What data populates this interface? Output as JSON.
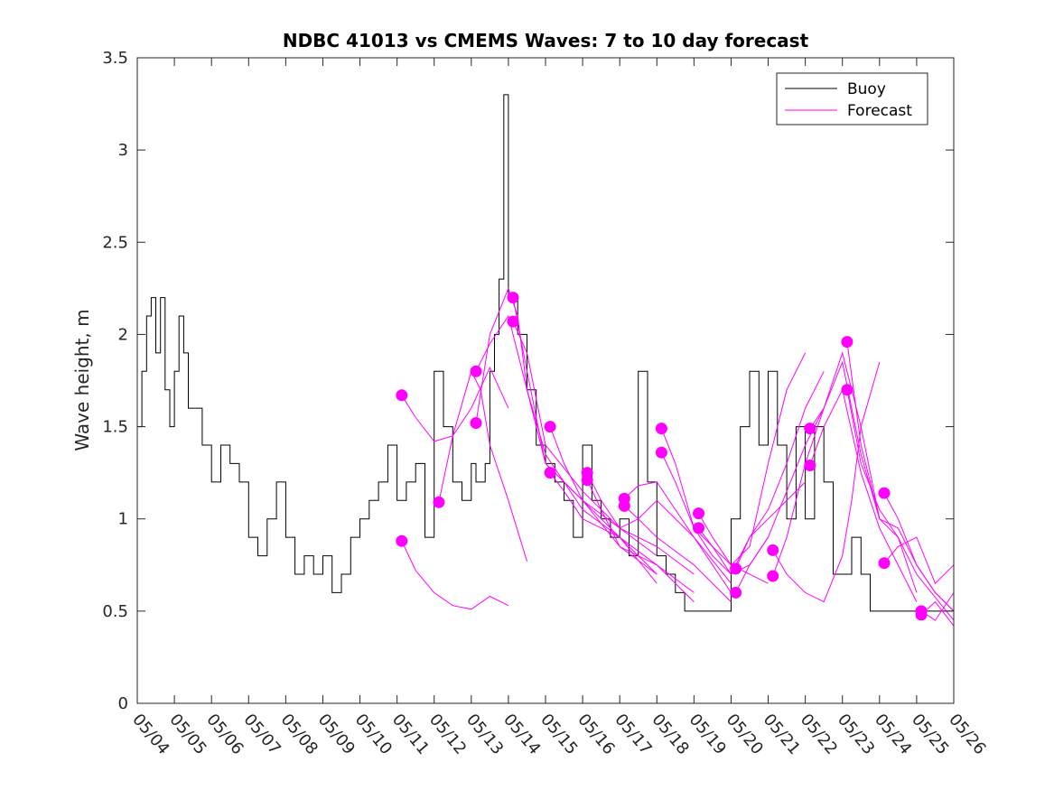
{
  "chart_data": {
    "type": "line",
    "title": "NDBC 41013 vs CMEMS Waves: 7 to 10 day forecast",
    "xlabel": "",
    "ylabel": "Wave height, m",
    "xlim": [
      "05/04",
      "05/26"
    ],
    "ylim": [
      0,
      3.5
    ],
    "yticks": [
      "0",
      "0.5",
      "1",
      "1.5",
      "2",
      "2.5",
      "3",
      "3.5"
    ],
    "xticks": [
      "05/04",
      "05/05",
      "05/06",
      "05/07",
      "05/08",
      "05/09",
      "05/10",
      "05/11",
      "05/12",
      "05/13",
      "05/14",
      "05/15",
      "05/16",
      "05/17",
      "05/18",
      "05/19",
      "05/20",
      "05/21",
      "05/22",
      "05/23",
      "05/24",
      "05/25",
      "05/26"
    ],
    "legend": {
      "position": "top-right",
      "entries": [
        "Buoy",
        "Forecast"
      ]
    },
    "colors": {
      "buoy": "#000000",
      "forecast": "#ff00ff"
    },
    "buoy": {
      "name": "Buoy",
      "x": [
        "05/04 00:00",
        "05/04 03:00",
        "05/04 06:00",
        "05/04 09:00",
        "05/04 12:00",
        "05/04 15:00",
        "05/04 18:00",
        "05/04 21:00",
        "05/05 00:00",
        "05/05 03:00",
        "05/05 06:00",
        "05/05 09:00",
        "05/05 12:00",
        "05/05 18:00",
        "05/06 00:00",
        "05/06 06:00",
        "05/06 12:00",
        "05/06 18:00",
        "05/07 00:00",
        "05/07 06:00",
        "05/07 12:00",
        "05/07 18:00",
        "05/08 00:00",
        "05/08 06:00",
        "05/08 12:00",
        "05/08 18:00",
        "05/09 00:00",
        "05/09 06:00",
        "05/09 12:00",
        "05/09 18:00",
        "05/10 00:00",
        "05/10 06:00",
        "05/10 12:00",
        "05/10 18:00",
        "05/11 00:00",
        "05/11 06:00",
        "05/11 12:00",
        "05/11 18:00",
        "05/12 00:00",
        "05/12 06:00",
        "05/12 12:00",
        "05/12 18:00",
        "05/13 00:00",
        "05/13 03:00",
        "05/13 06:00",
        "05/13 09:00",
        "05/13 12:00",
        "05/13 15:00",
        "05/13 18:00",
        "05/13 21:00",
        "05/14 00:00",
        "05/14 06:00",
        "05/14 12:00",
        "05/14 18:00",
        "05/15 00:00",
        "05/15 06:00",
        "05/15 12:00",
        "05/15 18:00",
        "05/16 00:00",
        "05/16 06:00",
        "05/16 12:00",
        "05/16 18:00",
        "05/17 00:00",
        "05/17 06:00",
        "05/17 12:00",
        "05/17 18:00",
        "05/18 00:00",
        "05/18 06:00",
        "05/18 12:00",
        "05/18 18:00",
        "05/19 00:00",
        "05/19 06:00",
        "05/19 12:00",
        "05/19 18:00",
        "05/20 00:00",
        "05/20 06:00",
        "05/20 12:00",
        "05/20 18:00",
        "05/21 00:00",
        "05/21 06:00",
        "05/21 12:00",
        "05/21 18:00",
        "05/22 00:00",
        "05/22 06:00",
        "05/22 12:00",
        "05/22 18:00",
        "05/23 00:00",
        "05/23 06:00",
        "05/23 12:00",
        "05/23 18:00",
        "05/24 00:00",
        "05/24 06:00",
        "05/24 12:00",
        "05/24 18:00",
        "05/25 00:00",
        "05/25 06:00",
        "05/25 12:00",
        "05/25 18:00",
        "05/26 00:00"
      ],
      "values": [
        1.5,
        1.8,
        2.1,
        2.2,
        1.9,
        2.2,
        1.7,
        1.5,
        1.8,
        2.1,
        1.9,
        1.6,
        1.6,
        1.4,
        1.2,
        1.4,
        1.3,
        1.2,
        0.9,
        0.8,
        1.0,
        1.2,
        0.9,
        0.7,
        0.8,
        0.7,
        0.8,
        0.6,
        0.7,
        0.9,
        1.0,
        1.1,
        1.2,
        1.4,
        1.1,
        1.2,
        1.3,
        0.9,
        1.8,
        1.5,
        1.2,
        1.1,
        1.3,
        1.2,
        1.2,
        1.3,
        1.8,
        2.0,
        2.3,
        3.3,
        2.2,
        2.0,
        1.7,
        1.4,
        1.3,
        1.2,
        1.1,
        0.9,
        1.4,
        1.1,
        1.0,
        0.9,
        1.0,
        0.8,
        1.8,
        1.2,
        0.8,
        0.7,
        0.6,
        0.5,
        0.5,
        0.5,
        0.5,
        0.5,
        1.0,
        1.5,
        1.8,
        1.4,
        1.8,
        1.4,
        1.0,
        1.5,
        1.0,
        1.5,
        1.2,
        0.7,
        0.7,
        0.9,
        0.7,
        0.5,
        0.5,
        0.5,
        0.5,
        0.5,
        0.5,
        0.5,
        0.5,
        0.5,
        0.5
      ]
    },
    "forecasts": [
      {
        "x": [
          "05/11 03:00",
          "05/11 12:00",
          "05/12 00:00",
          "05/12 12:00",
          "05/13 00:00",
          "05/13 12:00",
          "05/14 00:00"
        ],
        "values": [
          0.88,
          0.72,
          0.6,
          0.53,
          0.51,
          0.58,
          0.53
        ]
      },
      {
        "x": [
          "05/11 03:00",
          "05/11 12:00",
          "05/12 00:00",
          "05/12 12:00",
          "05/13 00:00",
          "05/13 12:00",
          "05/14 00:00"
        ],
        "values": [
          1.67,
          1.55,
          1.42,
          1.45,
          1.6,
          1.82,
          1.6
        ]
      },
      {
        "x": [
          "05/12 03:00",
          "05/12 12:00",
          "05/13 00:00",
          "05/13 06:00",
          "05/13 12:00",
          "05/14 00:00",
          "05/14 12:00"
        ],
        "values": [
          1.09,
          1.45,
          1.8,
          1.7,
          1.4,
          1.1,
          0.77
        ]
      },
      {
        "x": [
          "05/13 03:00",
          "05/13 12:00",
          "05/14 00:00",
          "05/14 06:00",
          "05/14 12:00",
          "05/15 00:00",
          "05/15 12:00",
          "05/16 00:00",
          "05/17 00:00",
          "05/18 00:00"
        ],
        "values": [
          1.52,
          2.0,
          2.25,
          2.1,
          1.7,
          1.35,
          1.2,
          1.05,
          0.9,
          0.7
        ]
      },
      {
        "x": [
          "05/13 03:00",
          "05/13 12:00",
          "05/14 00:00",
          "05/14 06:00",
          "05/15 00:00",
          "05/16 00:00",
          "05/17 00:00",
          "05/18 00:00",
          "05/19 00:00"
        ],
        "values": [
          1.8,
          1.95,
          2.1,
          1.9,
          1.3,
          1.1,
          0.9,
          0.75,
          0.55
        ]
      },
      {
        "x": [
          "05/14 03:00",
          "05/14 12:00",
          "05/15 00:00",
          "05/16 00:00",
          "05/17 00:00",
          "05/18 00:00"
        ],
        "values": [
          2.2,
          1.8,
          1.3,
          1.1,
          0.85,
          0.7
        ]
      },
      {
        "x": [
          "05/14 03:00",
          "05/14 12:00",
          "05/15 00:00",
          "05/16 00:00",
          "05/17 00:00",
          "05/18 00:00"
        ],
        "values": [
          2.07,
          1.9,
          1.4,
          1.15,
          0.95,
          0.8
        ]
      },
      {
        "x": [
          "05/15 03:00",
          "05/15 12:00",
          "05/16 00:00",
          "05/17 00:00",
          "05/18 00:00",
          "05/19 00:00"
        ],
        "values": [
          1.5,
          1.3,
          1.1,
          0.95,
          0.85,
          0.7
        ]
      },
      {
        "x": [
          "05/15 03:00",
          "05/15 12:00",
          "05/16 00:00",
          "05/17 00:00",
          "05/18 00:00"
        ],
        "values": [
          1.25,
          1.15,
          1.0,
          0.9,
          0.65
        ]
      },
      {
        "x": [
          "05/16 03:00",
          "05/16 12:00",
          "05/17 00:00",
          "05/17 12:00",
          "05/18 00:00",
          "05/19 00:00",
          "05/20 00:00"
        ],
        "values": [
          1.25,
          1.1,
          0.95,
          1.0,
          1.1,
          0.9,
          0.6
        ]
      },
      {
        "x": [
          "05/16 03:00",
          "05/16 12:00",
          "05/17 00:00",
          "05/18 00:00",
          "05/19 00:00"
        ],
        "values": [
          1.21,
          1.05,
          0.85,
          0.75,
          0.6
        ]
      },
      {
        "x": [
          "05/17 03:00",
          "05/17 12:00",
          "05/18 00:00",
          "05/18 12:00",
          "05/19 00:00",
          "05/20 00:00"
        ],
        "values": [
          1.11,
          1.18,
          1.2,
          1.05,
          0.9,
          0.65
        ]
      },
      {
        "x": [
          "05/17 03:00",
          "05/17 12:00",
          "05/18 00:00",
          "05/19 00:00",
          "05/20 00:00"
        ],
        "values": [
          1.07,
          1.0,
          0.9,
          0.75,
          0.55
        ]
      },
      {
        "x": [
          "05/18 03:00",
          "05/18 12:00",
          "05/19 00:00",
          "05/19 12:00",
          "05/20 00:00",
          "05/20 12:00",
          "05/21 00:00"
        ],
        "values": [
          1.49,
          1.3,
          0.95,
          0.8,
          0.7,
          0.75,
          0.9
        ]
      },
      {
        "x": [
          "05/18 03:00",
          "05/18 12:00",
          "05/19 00:00",
          "05/20 00:00",
          "05/21 00:00"
        ],
        "values": [
          1.36,
          1.2,
          0.95,
          0.75,
          0.65
        ]
      },
      {
        "x": [
          "05/19 03:00",
          "05/19 12:00",
          "05/20 00:00",
          "05/20 12:00",
          "05/21 00:00",
          "05/21 12:00",
          "05/22 00:00"
        ],
        "values": [
          1.03,
          0.9,
          0.75,
          0.85,
          1.3,
          1.7,
          1.9
        ]
      },
      {
        "x": [
          "05/19 03:00",
          "05/19 12:00",
          "05/20 00:00",
          "05/20 12:00",
          "05/21 00:00",
          "05/22 00:00"
        ],
        "values": [
          0.95,
          0.85,
          0.7,
          0.9,
          1.0,
          1.2
        ]
      },
      {
        "x": [
          "05/20 03:00",
          "05/20 12:00",
          "05/21 00:00",
          "05/21 12:00",
          "05/22 00:00",
          "05/22 12:00"
        ],
        "values": [
          0.73,
          0.9,
          1.05,
          1.3,
          1.6,
          1.8
        ]
      },
      {
        "x": [
          "05/20 03:00",
          "05/20 12:00",
          "05/21 00:00",
          "05/21 12:00",
          "05/22 00:00",
          "05/22 12:00"
        ],
        "values": [
          0.6,
          0.75,
          0.9,
          1.15,
          1.4,
          1.6
        ]
      },
      {
        "x": [
          "05/21 03:00",
          "05/21 12:00",
          "05/22 00:00",
          "05/22 12:00",
          "05/23 00:00",
          "05/23 06:00",
          "05/23 12:00",
          "05/24 00:00"
        ],
        "values": [
          0.83,
          0.7,
          0.6,
          0.55,
          0.8,
          1.1,
          1.5,
          1.85
        ]
      },
      {
        "x": [
          "05/21 03:00",
          "05/21 12:00",
          "05/22 00:00",
          "05/22 12:00",
          "05/23 00:00",
          "05/23 12:00",
          "05/24 00:00"
        ],
        "values": [
          0.69,
          0.9,
          1.3,
          1.6,
          1.9,
          1.5,
          1.0
        ]
      },
      {
        "x": [
          "05/22 03:00",
          "05/22 12:00",
          "05/23 00:00",
          "05/23 12:00",
          "05/24 00:00",
          "05/24 12:00",
          "05/25 00:00"
        ],
        "values": [
          1.49,
          1.6,
          1.85,
          1.35,
          1.0,
          0.9,
          0.6
        ]
      },
      {
        "x": [
          "05/22 03:00",
          "05/22 12:00",
          "05/23 00:00",
          "05/23 12:00",
          "05/24 00:00",
          "05/25 00:00"
        ],
        "values": [
          1.29,
          1.5,
          1.7,
          1.25,
          0.95,
          0.55
        ]
      },
      {
        "x": [
          "05/23 03:00",
          "05/23 12:00",
          "05/24 00:00",
          "05/24 12:00",
          "05/25 00:00",
          "05/25 12:00",
          "05/26 00:00"
        ],
        "values": [
          1.96,
          1.4,
          1.0,
          0.95,
          0.75,
          0.6,
          0.5
        ]
      },
      {
        "x": [
          "05/23 03:00",
          "05/23 12:00",
          "05/24 00:00",
          "05/24 12:00",
          "05/25 00:00",
          "05/26 00:00"
        ],
        "values": [
          1.7,
          1.3,
          1.05,
          0.9,
          0.7,
          0.45
        ]
      },
      {
        "x": [
          "05/24 03:00",
          "05/24 12:00",
          "05/25 00:00",
          "05/25 12:00",
          "05/26 00:00"
        ],
        "values": [
          1.14,
          1.0,
          0.75,
          0.6,
          0.5
        ]
      },
      {
        "x": [
          "05/24 03:00",
          "05/24 12:00",
          "05/25 00:00",
          "05/25 12:00",
          "05/26 00:00"
        ],
        "values": [
          0.76,
          0.85,
          0.9,
          0.65,
          0.75
        ]
      },
      {
        "x": [
          "05/25 03:00",
          "05/25 12:00",
          "05/26 00:00"
        ],
        "values": [
          0.5,
          0.45,
          0.6
        ]
      },
      {
        "x": [
          "05/25 03:00",
          "05/25 12:00",
          "05/26 00:00"
        ],
        "values": [
          0.48,
          0.55,
          0.42
        ]
      }
    ]
  }
}
